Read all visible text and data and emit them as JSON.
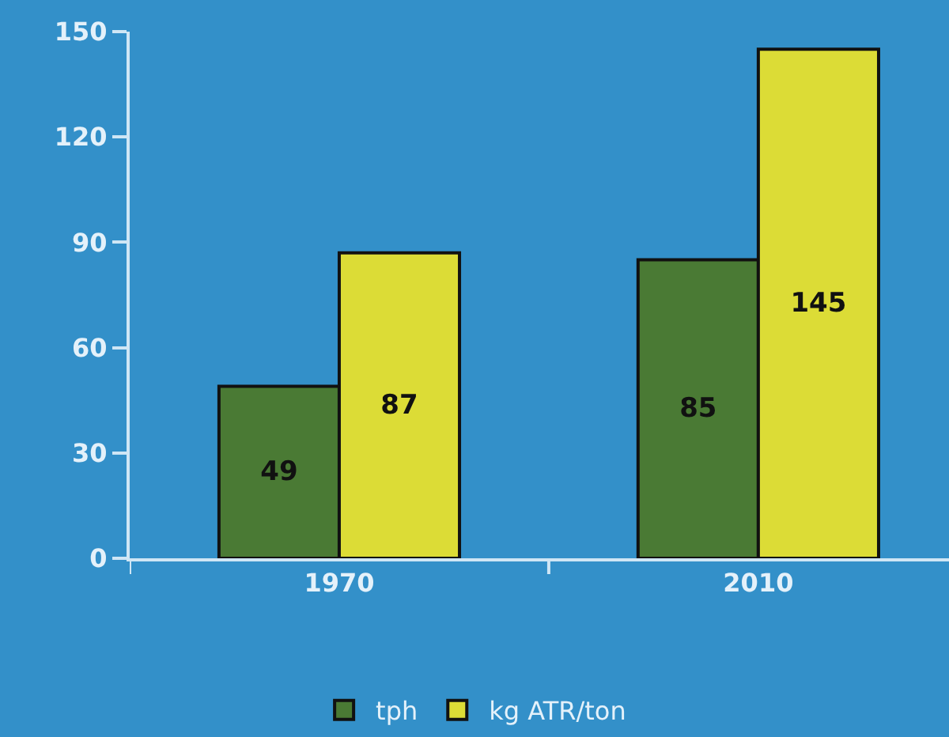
{
  "chart_data": {
    "type": "bar",
    "categories": [
      "1970",
      "2010"
    ],
    "series": [
      {
        "name": "tph",
        "color": "#4a7a34",
        "values": [
          49,
          85
        ]
      },
      {
        "name": "kg ATR/ton",
        "color": "#dcdc36",
        "values": [
          87,
          145
        ]
      }
    ],
    "ylim": [
      0,
      150
    ],
    "yticks": [
      0,
      30,
      60,
      90,
      120,
      150
    ],
    "legend": "bottom",
    "data_labels": true
  }
}
